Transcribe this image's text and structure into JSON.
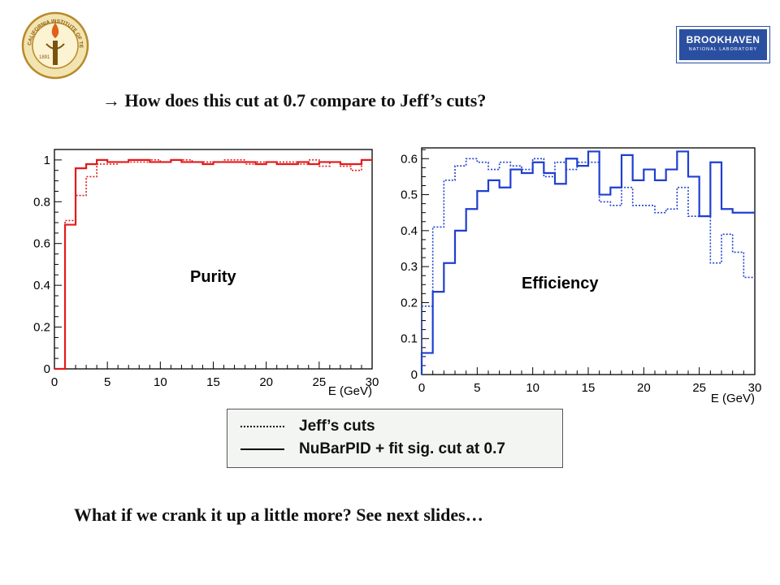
{
  "header": {
    "question": "→ How does this cut at 0.7 compare to Jeff’s cuts?"
  },
  "logos": {
    "left": {
      "text_top": "CALIFORNIA INSTITUTE OF TECHNOLOGY",
      "year": "1891"
    },
    "right": {
      "line1": "BROOKHAVEN",
      "line2": "NATIONAL LABORATORY"
    }
  },
  "chart_data": [
    {
      "type": "line",
      "title": "Purity",
      "xlabel": "E (GeV)",
      "ylabel": "",
      "color": "#e31a1c",
      "xlim": [
        0,
        30
      ],
      "ylim": [
        0,
        1.05
      ],
      "xticks": [
        "0",
        "5",
        "10",
        "15",
        "20",
        "25",
        "30"
      ],
      "yticks": [
        "0",
        "0.2",
        "0.4",
        "0.6",
        "0.8",
        "1"
      ],
      "bin_edges": [
        0,
        1,
        2,
        3,
        4,
        5,
        6,
        7,
        8,
        9,
        10,
        11,
        12,
        13,
        14,
        15,
        16,
        17,
        18,
        19,
        20,
        21,
        22,
        23,
        24,
        25,
        26,
        27,
        28,
        29,
        30
      ],
      "series": [
        {
          "name": "Jeff’s cuts",
          "style": "dotted",
          "values": [
            0,
            0.71,
            0.83,
            0.92,
            0.98,
            0.98,
            0.99,
            0.99,
            0.99,
            1.0,
            0.99,
            1.0,
            1.0,
            0.99,
            0.99,
            0.99,
            1.0,
            1.0,
            0.98,
            0.99,
            0.99,
            0.99,
            0.99,
            0.98,
            1.0,
            0.97,
            0.99,
            0.97,
            0.95,
            1.0
          ]
        },
        {
          "name": "NuBarPID + fit sig. cut at 0.7",
          "style": "solid",
          "values": [
            0,
            0.69,
            0.96,
            0.98,
            1.0,
            0.99,
            0.99,
            1.0,
            1.0,
            0.99,
            0.99,
            1.0,
            0.99,
            0.99,
            0.98,
            0.99,
            0.99,
            0.99,
            0.99,
            0.98,
            0.99,
            0.98,
            0.98,
            0.99,
            0.98,
            0.99,
            0.99,
            0.98,
            0.98,
            1.0
          ]
        }
      ]
    },
    {
      "type": "line",
      "title": "Efficiency",
      "xlabel": "E (GeV)",
      "ylabel": "",
      "color": "#1f3fd0",
      "xlim": [
        0,
        30
      ],
      "ylim": [
        0,
        0.63
      ],
      "xticks": [
        "0",
        "5",
        "10",
        "15",
        "20",
        "25",
        "30"
      ],
      "yticks": [
        "0",
        "0.1",
        "0.2",
        "0.3",
        "0.4",
        "0.5",
        "0.6"
      ],
      "bin_edges": [
        0,
        1,
        2,
        3,
        4,
        5,
        6,
        7,
        8,
        9,
        10,
        11,
        12,
        13,
        14,
        15,
        16,
        17,
        18,
        19,
        20,
        21,
        22,
        23,
        24,
        25,
        26,
        27,
        28,
        29,
        30
      ],
      "series": [
        {
          "name": "Jeff’s cuts",
          "style": "dotted",
          "values": [
            0.19,
            0.41,
            0.54,
            0.58,
            0.6,
            0.59,
            0.57,
            0.59,
            0.58,
            0.57,
            0.6,
            0.55,
            0.59,
            0.57,
            0.59,
            0.59,
            0.48,
            0.47,
            0.52,
            0.47,
            0.47,
            0.45,
            0.46,
            0.52,
            0.44,
            0.44,
            0.31,
            0.39,
            0.34,
            0.27
          ]
        },
        {
          "name": "NuBarPID + fit sig. cut at 0.7",
          "style": "solid",
          "values": [
            0.06,
            0.23,
            0.31,
            0.4,
            0.46,
            0.51,
            0.54,
            0.52,
            0.57,
            0.56,
            0.59,
            0.56,
            0.53,
            0.6,
            0.58,
            0.62,
            0.5,
            0.52,
            0.61,
            0.54,
            0.57,
            0.54,
            0.57,
            0.62,
            0.55,
            0.44,
            0.59,
            0.46,
            0.45,
            0.45
          ]
        }
      ]
    }
  ],
  "legend": {
    "entries": [
      {
        "label": "Jeff’s cuts",
        "style": "dotted"
      },
      {
        "label": "NuBarPID + fit sig. cut at 0.7",
        "style": "solid"
      }
    ]
  },
  "footer": {
    "text": "What if we crank it up a little more? See next slides…"
  }
}
